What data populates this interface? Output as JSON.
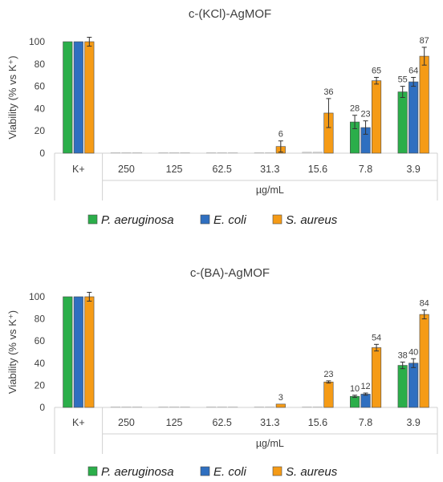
{
  "chart_data": [
    {
      "type": "bar",
      "title": "c-(KCl)-AgMOF",
      "ylabel": "Viability (% vs K⁺)",
      "xlabel": "µg/mL",
      "ylim": [
        0,
        100
      ],
      "yticks": [
        0,
        20,
        40,
        60,
        80,
        100
      ],
      "categories": [
        "K+",
        "250",
        "125",
        "62.5",
        "31.3",
        "15.6",
        "7.8",
        "3.9"
      ],
      "series": [
        {
          "name": "P. aeruginosa",
          "color": "#2bae4a",
          "values": [
            100,
            0.3,
            0.3,
            0.3,
            0.3,
            1,
            28,
            55
          ],
          "errors": [
            0,
            0,
            0,
            0,
            0,
            0,
            6,
            5
          ],
          "labels": [
            "",
            "",
            "",
            "",
            "",
            "",
            "28",
            "55"
          ]
        },
        {
          "name": "E. coli",
          "color": "#2f6fc0",
          "values": [
            100,
            0.3,
            0.3,
            0.3,
            0.3,
            1,
            23,
            64
          ],
          "errors": [
            0,
            0,
            0,
            0,
            0,
            0,
            6,
            4
          ],
          "labels": [
            "",
            "",
            "",
            "",
            "",
            "",
            "23",
            "64"
          ]
        },
        {
          "name": "S. aureus",
          "color": "#f59b16",
          "values": [
            100,
            0.3,
            0.3,
            0.3,
            6,
            36,
            65,
            87
          ],
          "errors": [
            4,
            0,
            0,
            0,
            5,
            13,
            3,
            8
          ],
          "labels": [
            "",
            "",
            "",
            "",
            "6",
            "36",
            "65",
            "87"
          ]
        }
      ],
      "grid": false,
      "legend": "bottom"
    },
    {
      "type": "bar",
      "title": "c-(BA)-AgMOF",
      "ylabel": "Viability (% vs K⁺)",
      "xlabel": "µg/mL",
      "ylim": [
        0,
        100
      ],
      "yticks": [
        0,
        20,
        40,
        60,
        80,
        100
      ],
      "categories": [
        "K+",
        "250",
        "125",
        "62.5",
        "31.3",
        "15.6",
        "7.8",
        "3.9"
      ],
      "series": [
        {
          "name": "P. aeruginosa",
          "color": "#2bae4a",
          "values": [
            100,
            0.3,
            0.3,
            0.3,
            0.3,
            0.5,
            10,
            38
          ],
          "errors": [
            0,
            0,
            0,
            0,
            0,
            0,
            1,
            3
          ],
          "labels": [
            "",
            "",
            "",
            "",
            "",
            "",
            "10",
            "38"
          ]
        },
        {
          "name": "E. coli",
          "color": "#2f6fc0",
          "values": [
            100,
            0.3,
            0.3,
            0.3,
            0.3,
            0.5,
            12,
            40
          ],
          "errors": [
            0,
            0,
            0,
            0,
            0,
            0,
            1,
            4
          ],
          "labels": [
            "",
            "",
            "",
            "",
            "",
            "",
            "12",
            "40"
          ]
        },
        {
          "name": "S. aureus",
          "color": "#f59b16",
          "values": [
            100,
            0.3,
            0.3,
            0.3,
            3,
            23,
            54,
            84
          ],
          "errors": [
            4,
            0,
            0,
            0,
            0,
            1,
            3,
            4
          ],
          "labels": [
            "",
            "",
            "",
            "",
            "3",
            "23",
            "54",
            "84"
          ]
        }
      ],
      "grid": false,
      "legend": "bottom"
    }
  ]
}
